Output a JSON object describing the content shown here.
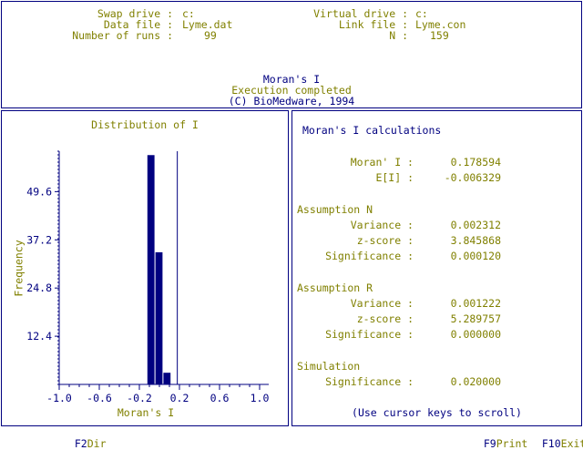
{
  "header": {
    "swap_drive_label": "Swap drive :",
    "swap_drive_value": "c:",
    "virtual_drive_label": "Virtual drive :",
    "virtual_drive_value": "c:",
    "data_file_label": "Data file :",
    "data_file_value": "Lyme.dat",
    "link_file_label": "Link file :",
    "link_file_value": "Lyme.con",
    "runs_label": "Number of runs :",
    "runs_value": "99",
    "n_label": "N :",
    "n_value": "159",
    "title": "Moran's I",
    "status": "Execution completed",
    "copyright": "(C) BioMedware, 1994"
  },
  "results": {
    "title": "Moran's I calculations",
    "moran_label": "Moran' I :",
    "moran_value": "0.178594",
    "ei_label": "E[I] :",
    "ei_value": "-0.006329",
    "assumption_n": {
      "heading": "Assumption N",
      "variance_label": "Variance :",
      "variance_value": "0.002312",
      "zscore_label": "z-score :",
      "zscore_value": "3.845868",
      "significance_label": "Significance :",
      "significance_value": "0.000120"
    },
    "assumption_r": {
      "heading": "Assumption R",
      "variance_label": "Variance :",
      "variance_value": "0.001222",
      "zscore_label": "z-score :",
      "zscore_value": "5.289757",
      "significance_label": "Significance :",
      "significance_value": "0.000000"
    },
    "simulation": {
      "heading": "Simulation",
      "significance_label": "Significance :",
      "significance_value": "0.020000"
    },
    "scroll_hint": "(Use cursor keys to scroll)"
  },
  "footer": {
    "f2_key": "F2",
    "f2_label": "Dir",
    "f9_key": "F9",
    "f9_label": "Print",
    "f10_key": "F10",
    "f10_label": "Exit"
  },
  "colors": {
    "navy": "#000080",
    "olive": "#808000"
  },
  "chart_data": {
    "type": "bar",
    "title": "Distribution of I",
    "xlabel": "Moran's I",
    "ylabel": "Frequency",
    "xlim": [
      -1.0,
      1.0
    ],
    "ylim": [
      0,
      60
    ],
    "x_ticks": [
      "-1.0",
      "-0.6",
      "-0.2",
      "0.2",
      "0.6",
      "1.0"
    ],
    "y_ticks": [
      "12.4",
      "24.8",
      "37.2",
      "49.6"
    ],
    "bins": [
      {
        "x0": -0.12,
        "x1": -0.04,
        "value": 59
      },
      {
        "x0": -0.04,
        "x1": 0.04,
        "value": 34
      },
      {
        "x0": 0.04,
        "x1": 0.12,
        "value": 3
      }
    ],
    "observed_marker": 0.178594
  }
}
